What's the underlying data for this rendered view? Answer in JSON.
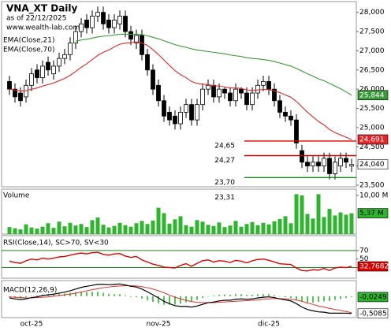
{
  "chart_data": [
    {
      "type": "candlestick",
      "title": "VNA_XT Daily",
      "subtitle": "as of 22/12/2025",
      "source": "www.wealth-lab.com",
      "categories": [
        null,
        null,
        null,
        null,
        "oct-25",
        null,
        null,
        null,
        null,
        null,
        null,
        null,
        null,
        null,
        null,
        null,
        null,
        null,
        null,
        null,
        null,
        null,
        null,
        null,
        null,
        null,
        null,
        "nov-25",
        null,
        null,
        null,
        null,
        null,
        null,
        null,
        null,
        null,
        null,
        null,
        null,
        null,
        null,
        null,
        null,
        null,
        null,
        null,
        "dic-25",
        null,
        null,
        null,
        null,
        null,
        null,
        null,
        null,
        null,
        null,
        null,
        null,
        null,
        null,
        null
      ],
      "open": [
        26.2,
        26.0,
        25.9,
        25.8,
        26.1,
        26.5,
        26.3,
        26.7,
        26.4,
        26.6,
        26.8,
        26.9,
        27.2,
        27.5,
        27.8,
        27.6,
        27.9,
        28.0,
        27.8,
        27.6,
        27.7,
        27.9,
        27.5,
        27.2,
        27.4,
        26.9,
        26.5,
        26.1,
        25.7,
        25.4,
        25.3,
        25.1,
        25.4,
        25.6,
        25.2,
        25.6,
        26.0,
        26.1,
        25.8,
        26.0,
        25.9,
        25.7,
        26.0,
        25.9,
        25.6,
        25.9,
        26.1,
        26.2,
        26.0,
        25.7,
        25.4,
        25.3,
        25.2,
        24.4,
        24.1,
        24.0,
        24.1,
        24.0,
        24.2,
        23.8,
        24.0,
        24.2,
        24.0
      ],
      "high": [
        26.35,
        26.15,
        26.05,
        26.25,
        26.55,
        26.65,
        26.75,
        26.85,
        26.75,
        26.95,
        27.05,
        27.35,
        27.65,
        27.85,
        27.95,
        28.05,
        28.15,
        28.15,
        27.95,
        27.95,
        28.05,
        28.05,
        27.65,
        27.55,
        27.55,
        27.05,
        26.65,
        26.25,
        25.85,
        25.55,
        25.45,
        25.55,
        25.75,
        25.75,
        25.75,
        26.15,
        26.25,
        26.25,
        26.15,
        26.05,
        26.05,
        26.15,
        26.05,
        26.05,
        26.05,
        26.25,
        26.35,
        26.35,
        26.15,
        25.85,
        25.55,
        25.45,
        25.35,
        24.55,
        24.25,
        24.25,
        24.25,
        24.35,
        24.35,
        24.25,
        24.35,
        24.35,
        24.19
      ],
      "low": [
        25.85,
        25.65,
        25.55,
        25.65,
        25.95,
        26.15,
        26.15,
        26.35,
        26.25,
        26.45,
        26.65,
        26.75,
        27.05,
        27.35,
        27.45,
        27.45,
        27.75,
        27.55,
        27.45,
        27.45,
        27.55,
        27.35,
        27.15,
        27.05,
        26.75,
        26.35,
        25.85,
        25.55,
        25.15,
        25.05,
        24.95,
        24.95,
        25.25,
        25.05,
        25.05,
        25.45,
        25.85,
        25.65,
        25.65,
        25.75,
        25.55,
        25.55,
        25.75,
        25.45,
        25.45,
        25.75,
        25.95,
        25.85,
        25.55,
        25.25,
        25.15,
        25.05,
        24.45,
        23.95,
        23.85,
        23.85,
        23.85,
        23.85,
        23.65,
        23.65,
        23.85,
        23.95,
        23.85
      ],
      "close": [
        26.0,
        25.8,
        25.7,
        26.1,
        26.4,
        26.3,
        26.6,
        26.5,
        26.6,
        26.8,
        26.9,
        27.2,
        27.5,
        27.7,
        27.6,
        27.9,
        28.0,
        27.7,
        27.6,
        27.8,
        27.9,
        27.5,
        27.3,
        27.4,
        26.9,
        26.5,
        26.0,
        25.7,
        25.3,
        25.2,
        25.1,
        25.4,
        25.6,
        25.2,
        25.6,
        26.0,
        26.1,
        25.8,
        26.0,
        25.9,
        25.7,
        26.0,
        25.9,
        25.6,
        25.9,
        26.1,
        26.2,
        26.0,
        25.7,
        25.4,
        25.3,
        25.2,
        24.6,
        24.1,
        24.0,
        24.1,
        24.0,
        24.2,
        23.8,
        24.1,
        24.2,
        24.1,
        24.04
      ],
      "last_label": "24,040",
      "series": [
        {
          "name": "EMA(Close,21)",
          "color": "#e8262a",
          "last_label": "24,691",
          "values": [
            26.0,
            25.98,
            25.95,
            25.96,
            26.0,
            26.03,
            26.08,
            26.12,
            26.16,
            26.22,
            26.28,
            26.36,
            26.46,
            26.57,
            26.66,
            26.77,
            26.88,
            26.96,
            27.02,
            27.1,
            27.17,
            27.2,
            27.21,
            27.23,
            27.2,
            27.14,
            27.03,
            26.9,
            26.76,
            26.62,
            26.48,
            26.38,
            26.3,
            26.2,
            26.15,
            26.13,
            26.12,
            26.09,
            26.08,
            26.06,
            26.03,
            26.03,
            26.02,
            25.98,
            25.97,
            25.98,
            25.99,
            25.99,
            25.96,
            25.91,
            25.85,
            25.79,
            25.68,
            25.54,
            25.4,
            25.28,
            25.16,
            25.07,
            24.95,
            24.87,
            24.81,
            24.75,
            24.691
          ]
        },
        {
          "name": "EMA(Close,70)",
          "color": "#3a9a3a",
          "last_label": "25,844",
          "values": [
            null,
            null,
            null,
            null,
            null,
            null,
            null,
            null,
            null,
            null,
            null,
            null,
            27.25,
            27.28,
            27.3,
            27.33,
            27.36,
            27.38,
            27.39,
            27.41,
            27.43,
            27.43,
            27.43,
            27.43,
            27.42,
            27.39,
            27.35,
            27.31,
            27.26,
            27.21,
            27.16,
            27.12,
            27.09,
            27.05,
            27.02,
            27.0,
            26.98,
            26.96,
            26.94,
            26.92,
            26.89,
            26.87,
            26.85,
            26.82,
            26.8,
            26.79,
            26.77,
            26.75,
            26.72,
            26.68,
            26.64,
            26.6,
            26.54,
            26.47,
            26.4,
            26.34,
            26.27,
            26.22,
            26.15,
            26.08,
            26.01,
            25.93,
            25.844
          ]
        }
      ],
      "levels": [
        {
          "value": 24.65,
          "label": "24,65",
          "color": "#e00000"
        },
        {
          "value": 24.27,
          "label": "24,27",
          "color": "#c00000"
        },
        {
          "value": 23.7,
          "label": "23,70",
          "color": "#1a8a1a"
        },
        {
          "value": 23.31,
          "label": "23,31",
          "color": "#1a8a1a"
        }
      ],
      "ylim": [
        23.46,
        28.28
      ],
      "yticks": [
        {
          "value": 28,
          "label": "28,000"
        },
        {
          "value": 27.5,
          "label": "27,500"
        },
        {
          "value": 27,
          "label": "27,000"
        },
        {
          "value": 26.5,
          "label": "26,500"
        },
        {
          "value": 26,
          "label": "26,000"
        },
        {
          "value": 25.5,
          "label": "25,500"
        },
        {
          "value": 25,
          "label": "25,000"
        },
        {
          "value": 24.5,
          "label": "24,500"
        },
        {
          "value": 24,
          "label": "24,000"
        },
        {
          "value": 23.5,
          "label": "23,500"
        }
      ]
    },
    {
      "type": "bar",
      "title": "Volume",
      "color": "#2db52d",
      "last_label": "5,37 M",
      "values": [
        1.8,
        1.5,
        1.2,
        2.5,
        1.7,
        1.4,
        1.9,
        2.8,
        1.6,
        3.2,
        2.0,
        2.9,
        2.2,
        2.6,
        1.8,
        3.6,
        4.3,
        2.4,
        1.7,
        2.1,
        2.9,
        2.3,
        1.9,
        2.8,
        3.4,
        2.6,
        3.5,
        6.8,
        5.4,
        2.7,
        3.8,
        4.6,
        2.3,
        1.9,
        3.6,
        3.2,
        2.4,
        2.1,
        3.0,
        1.8,
        2.2,
        3.4,
        1.9,
        2.6,
        3.1,
        2.3,
        2.9,
        2.5,
        3.3,
        3.9,
        4.6,
        2.8,
        10.3,
        10.0,
        5.2,
        4.0,
        10.3,
        4.4,
        6.5,
        4.8,
        5.6,
        5.0,
        5.37
      ],
      "ylim": [
        0,
        11.6
      ],
      "yticks": [
        {
          "value": 10,
          "label": "10,00 M"
        }
      ]
    },
    {
      "type": "line",
      "title": "RSI(Close,14), SC>70, SV<30",
      "color": "#dd0000",
      "level_color": "#1a8a1a",
      "last_label": "32,7682",
      "values": [
        45,
        42,
        40,
        46,
        50,
        48,
        52,
        50,
        52,
        55,
        56,
        59,
        62,
        64,
        62,
        65,
        66,
        61,
        59,
        62,
        63,
        57,
        54,
        56,
        48,
        43,
        38,
        35,
        31,
        30,
        29,
        35,
        39,
        33,
        40,
        46,
        48,
        43,
        46,
        45,
        42,
        47,
        45,
        41,
        46,
        49,
        50,
        47,
        43,
        39,
        38,
        37,
        29,
        23,
        22,
        25,
        24,
        28,
        23,
        29,
        31,
        30,
        32.7682
      ],
      "ylim": [
        5,
        105
      ],
      "yticks": [
        70,
        50,
        30
      ],
      "levels": [
        70,
        30
      ]
    },
    {
      "type": "macd",
      "title": "MACD(12,26,9)",
      "macd_color": "#000000",
      "signal_color": "#e03030",
      "histogram_color": "#2db52d",
      "macd": [
        -0.05,
        -0.08,
        -0.1,
        -0.08,
        -0.04,
        -0.02,
        0.02,
        0.04,
        0.06,
        0.09,
        0.12,
        0.16,
        0.21,
        0.26,
        0.29,
        0.32,
        0.35,
        0.35,
        0.34,
        0.35,
        0.36,
        0.33,
        0.29,
        0.27,
        0.21,
        0.13,
        0.04,
        -0.05,
        -0.15,
        -0.22,
        -0.28,
        -0.3,
        -0.3,
        -0.32,
        -0.29,
        -0.24,
        -0.19,
        -0.17,
        -0.14,
        -0.12,
        -0.12,
        -0.09,
        -0.08,
        -0.09,
        -0.08,
        -0.05,
        -0.03,
        -0.02,
        -0.04,
        -0.08,
        -0.11,
        -0.14,
        -0.22,
        -0.32,
        -0.39,
        -0.43,
        -0.46,
        -0.47,
        -0.5,
        -0.5,
        -0.5,
        -0.5,
        -0.5085
      ],
      "signal": [
        -0.02,
        -0.03,
        -0.04,
        -0.05,
        -0.05,
        -0.04,
        -0.03,
        -0.02,
        0.0,
        0.02,
        0.04,
        0.06,
        0.09,
        0.12,
        0.16,
        0.19,
        0.22,
        0.25,
        0.27,
        0.29,
        0.3,
        0.31,
        0.31,
        0.3,
        0.28,
        0.25,
        0.21,
        0.16,
        0.1,
        0.03,
        -0.03,
        -0.08,
        -0.12,
        -0.16,
        -0.18,
        -0.19,
        -0.19,
        -0.19,
        -0.18,
        -0.17,
        -0.16,
        -0.15,
        -0.14,
        -0.13,
        -0.12,
        -0.11,
        -0.09,
        -0.08,
        -0.07,
        -0.07,
        -0.08,
        -0.09,
        -0.11,
        -0.15,
        -0.2,
        -0.24,
        -0.29,
        -0.32,
        -0.36,
        -0.39,
        -0.42,
        -0.45,
        -0.4836
      ],
      "histogram": [
        -0.03,
        -0.05,
        -0.06,
        -0.03,
        0.01,
        0.02,
        0.05,
        0.06,
        0.06,
        0.07,
        0.08,
        0.1,
        0.12,
        0.14,
        0.13,
        0.13,
        0.13,
        0.1,
        0.07,
        0.06,
        0.06,
        0.02,
        -0.02,
        -0.03,
        -0.07,
        -0.12,
        -0.17,
        -0.21,
        -0.25,
        -0.25,
        -0.25,
        -0.22,
        -0.18,
        -0.16,
        -0.11,
        -0.05,
        0.0,
        0.02,
        0.04,
        0.05,
        0.04,
        0.06,
        0.06,
        0.04,
        0.04,
        0.06,
        0.06,
        0.06,
        0.03,
        -0.01,
        -0.03,
        -0.05,
        -0.11,
        -0.17,
        -0.19,
        -0.19,
        -0.17,
        -0.15,
        -0.14,
        -0.11,
        -0.08,
        -0.05,
        -0.0249
      ],
      "macd_label": "-0,5085",
      "histogram_label": "-0,0249",
      "ylim": [
        -0.63,
        0.46
      ]
    }
  ]
}
